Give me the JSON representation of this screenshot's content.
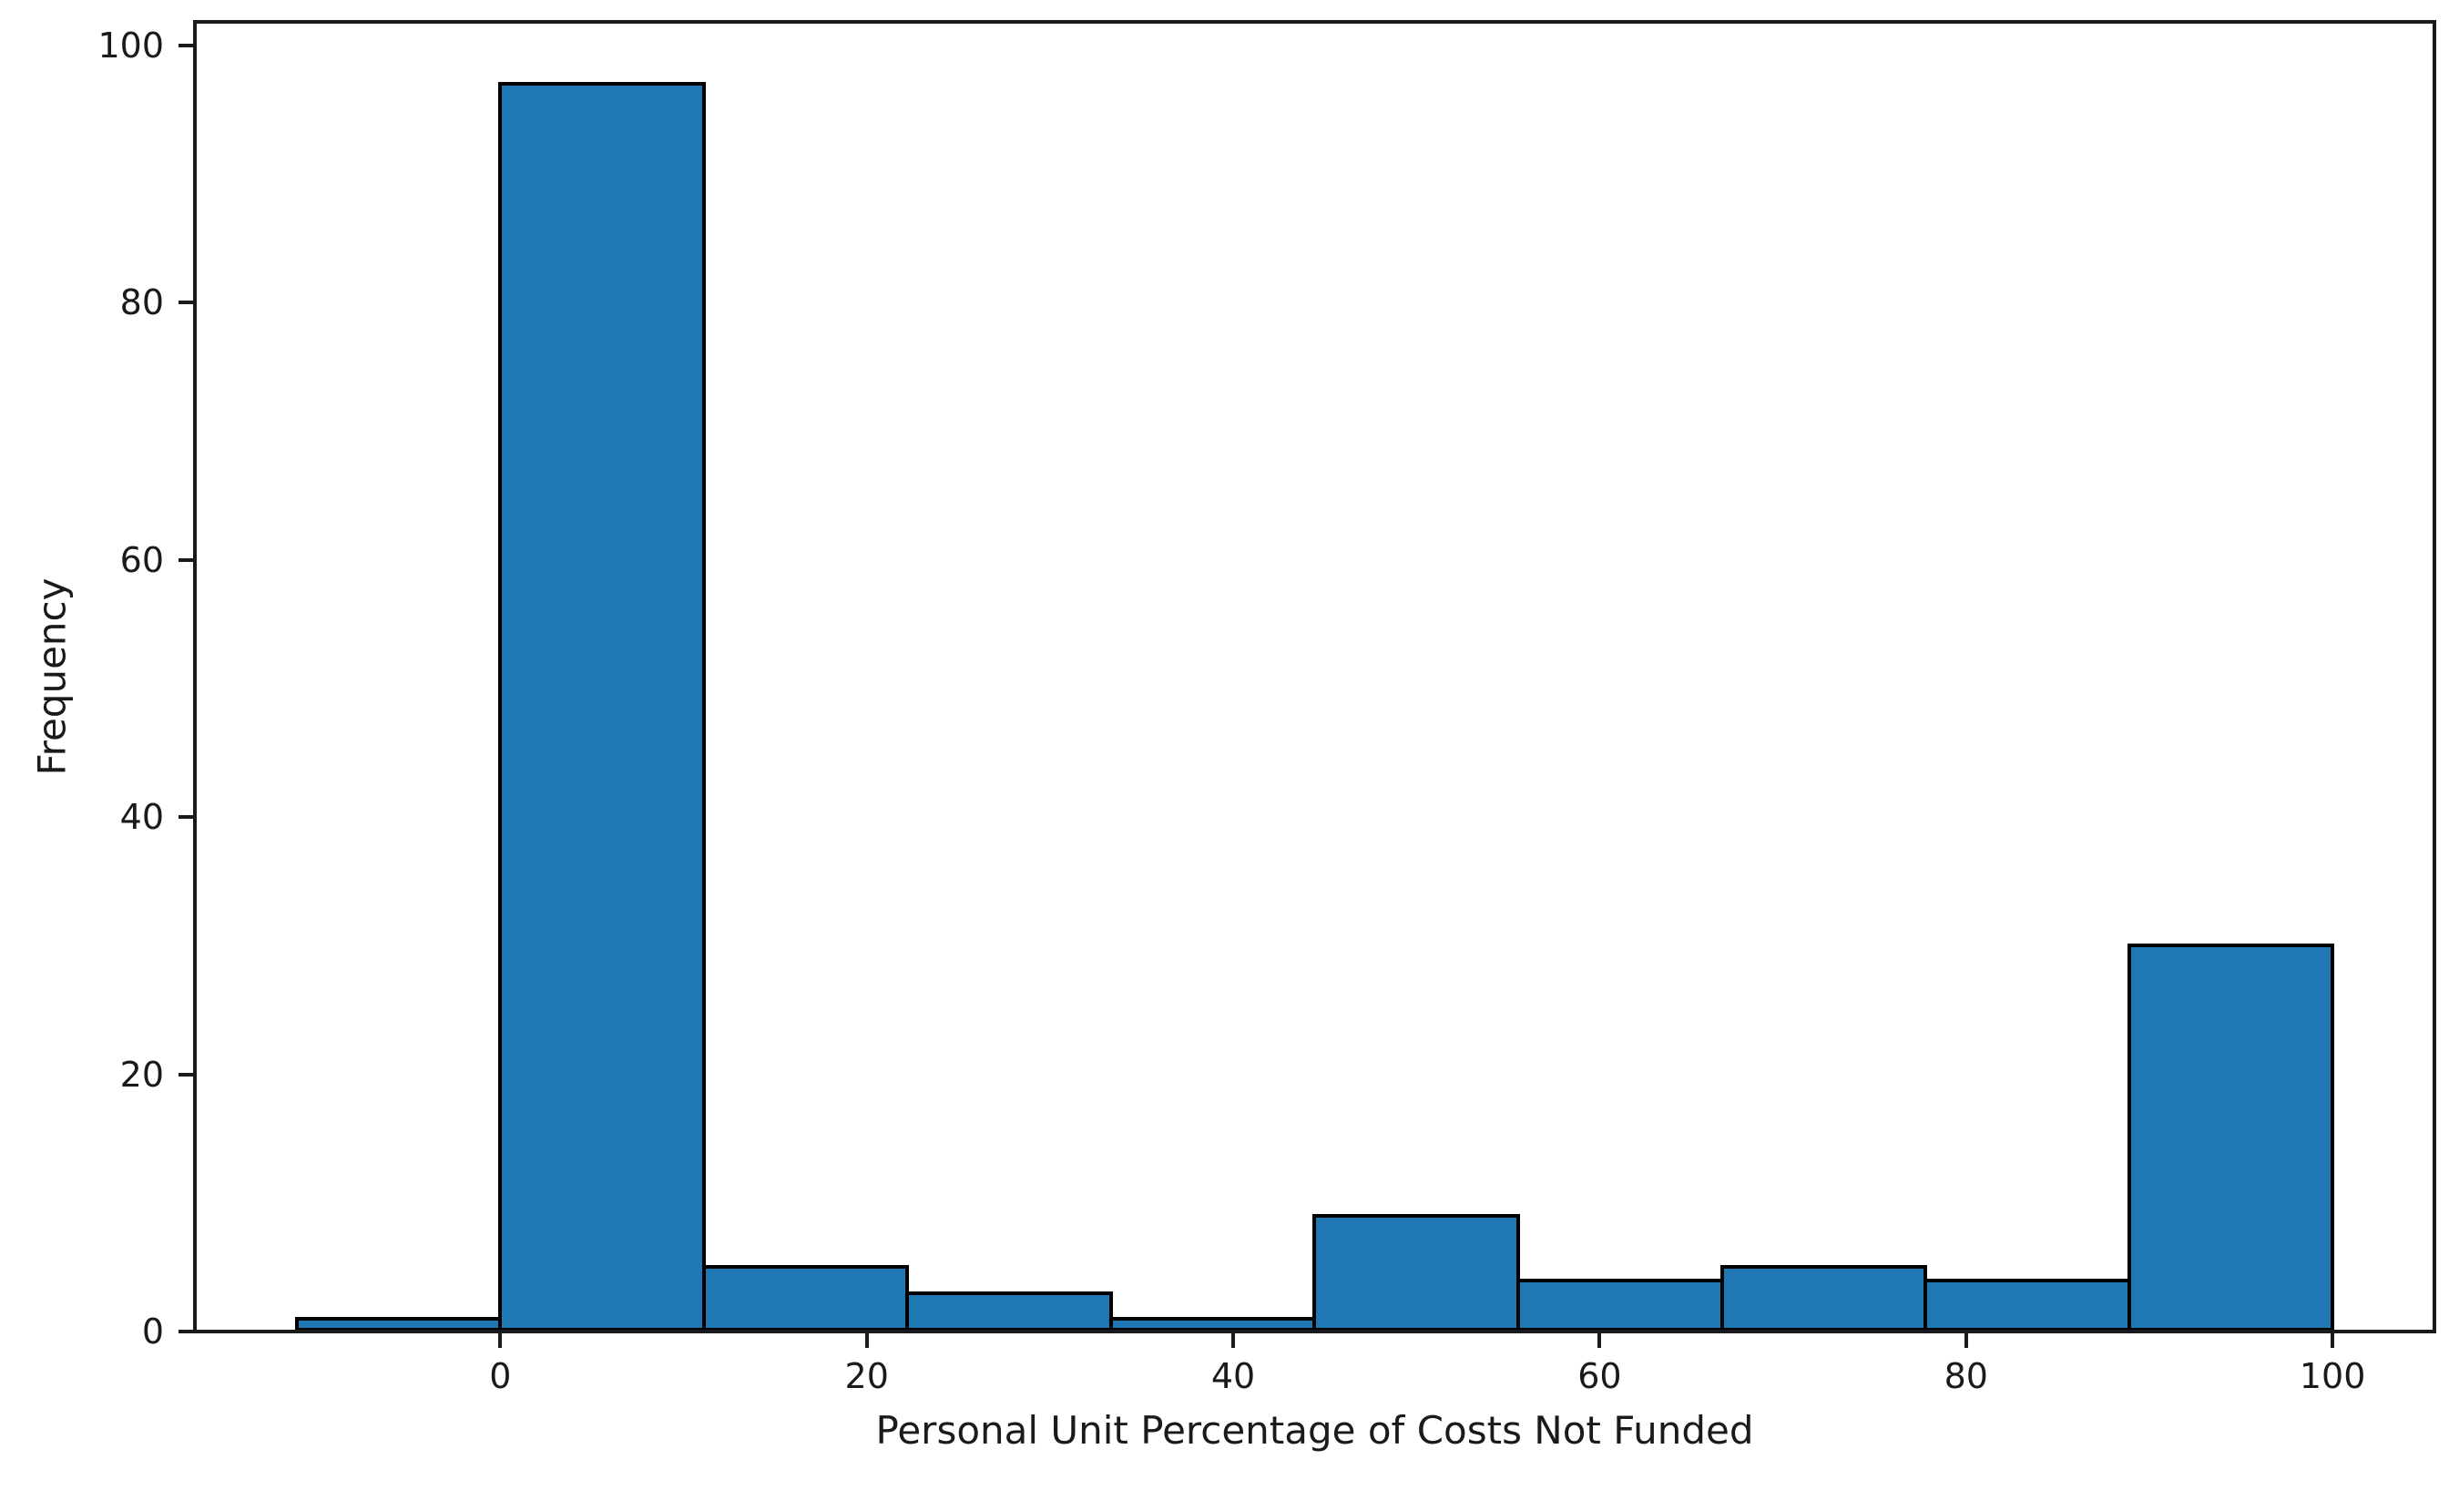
{
  "figure": {
    "background": "#ffffff",
    "title": ""
  },
  "chart_data": {
    "type": "histogram",
    "title": "",
    "xlabel": "Personal Unit Percentage of Costs Not Funded",
    "ylabel": "Frequency",
    "bin_edges": [
      -11.11,
      0,
      11.11,
      22.22,
      33.33,
      44.44,
      55.56,
      66.67,
      77.78,
      88.89,
      100
    ],
    "counts": [
      1,
      97,
      5,
      3,
      1,
      9,
      4,
      5,
      4,
      30
    ],
    "x_ticks": [
      0,
      20,
      40,
      60,
      80,
      100
    ],
    "y_ticks": [
      0,
      20,
      40,
      60,
      80,
      100
    ],
    "xlim": [
      -16.67,
      105.56
    ],
    "ylim": [
      0,
      101.85
    ],
    "bar_color": "#1f77b4",
    "bar_edge_color": "#000000",
    "spine_color": "#1a1a1a",
    "grid": false,
    "legend": null
  }
}
